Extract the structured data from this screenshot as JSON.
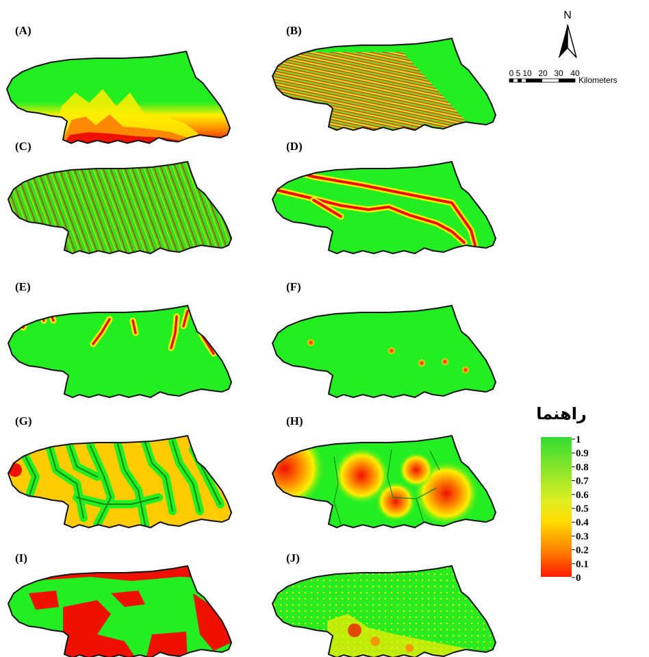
{
  "panels": [
    {
      "id": "A",
      "label": "(A)"
    },
    {
      "id": "B",
      "label": "(B)"
    },
    {
      "id": "C",
      "label": "(C)"
    },
    {
      "id": "D",
      "label": "(D)"
    },
    {
      "id": "E",
      "label": "(E)"
    },
    {
      "id": "F",
      "label": "(F)"
    },
    {
      "id": "G",
      "label": "(G)"
    },
    {
      "id": "H",
      "label": "(H)"
    },
    {
      "id": "I",
      "label": "(I)"
    },
    {
      "id": "J",
      "label": "(J)"
    }
  ],
  "north_arrow": {
    "label": "N"
  },
  "scale_bar": {
    "ticks": [
      "0",
      "5",
      "10",
      "20",
      "30",
      "40"
    ],
    "unit": "Kilometers"
  },
  "legend": {
    "title": "راهنما",
    "ticks": [
      "1",
      "0.9",
      "0.8",
      "0.7",
      "0.6",
      "0.5",
      "0.4",
      "0.3",
      "0.2",
      "0.1",
      "0"
    ],
    "colors": {
      "high": "#33dd33",
      "mid": "#ffff33",
      "low": "#ff1a00"
    }
  },
  "colors": {
    "green": "#22ee22",
    "yellow": "#ffee00",
    "red": "#ee1100",
    "dark_green": "#118811",
    "outline": "#111111"
  }
}
